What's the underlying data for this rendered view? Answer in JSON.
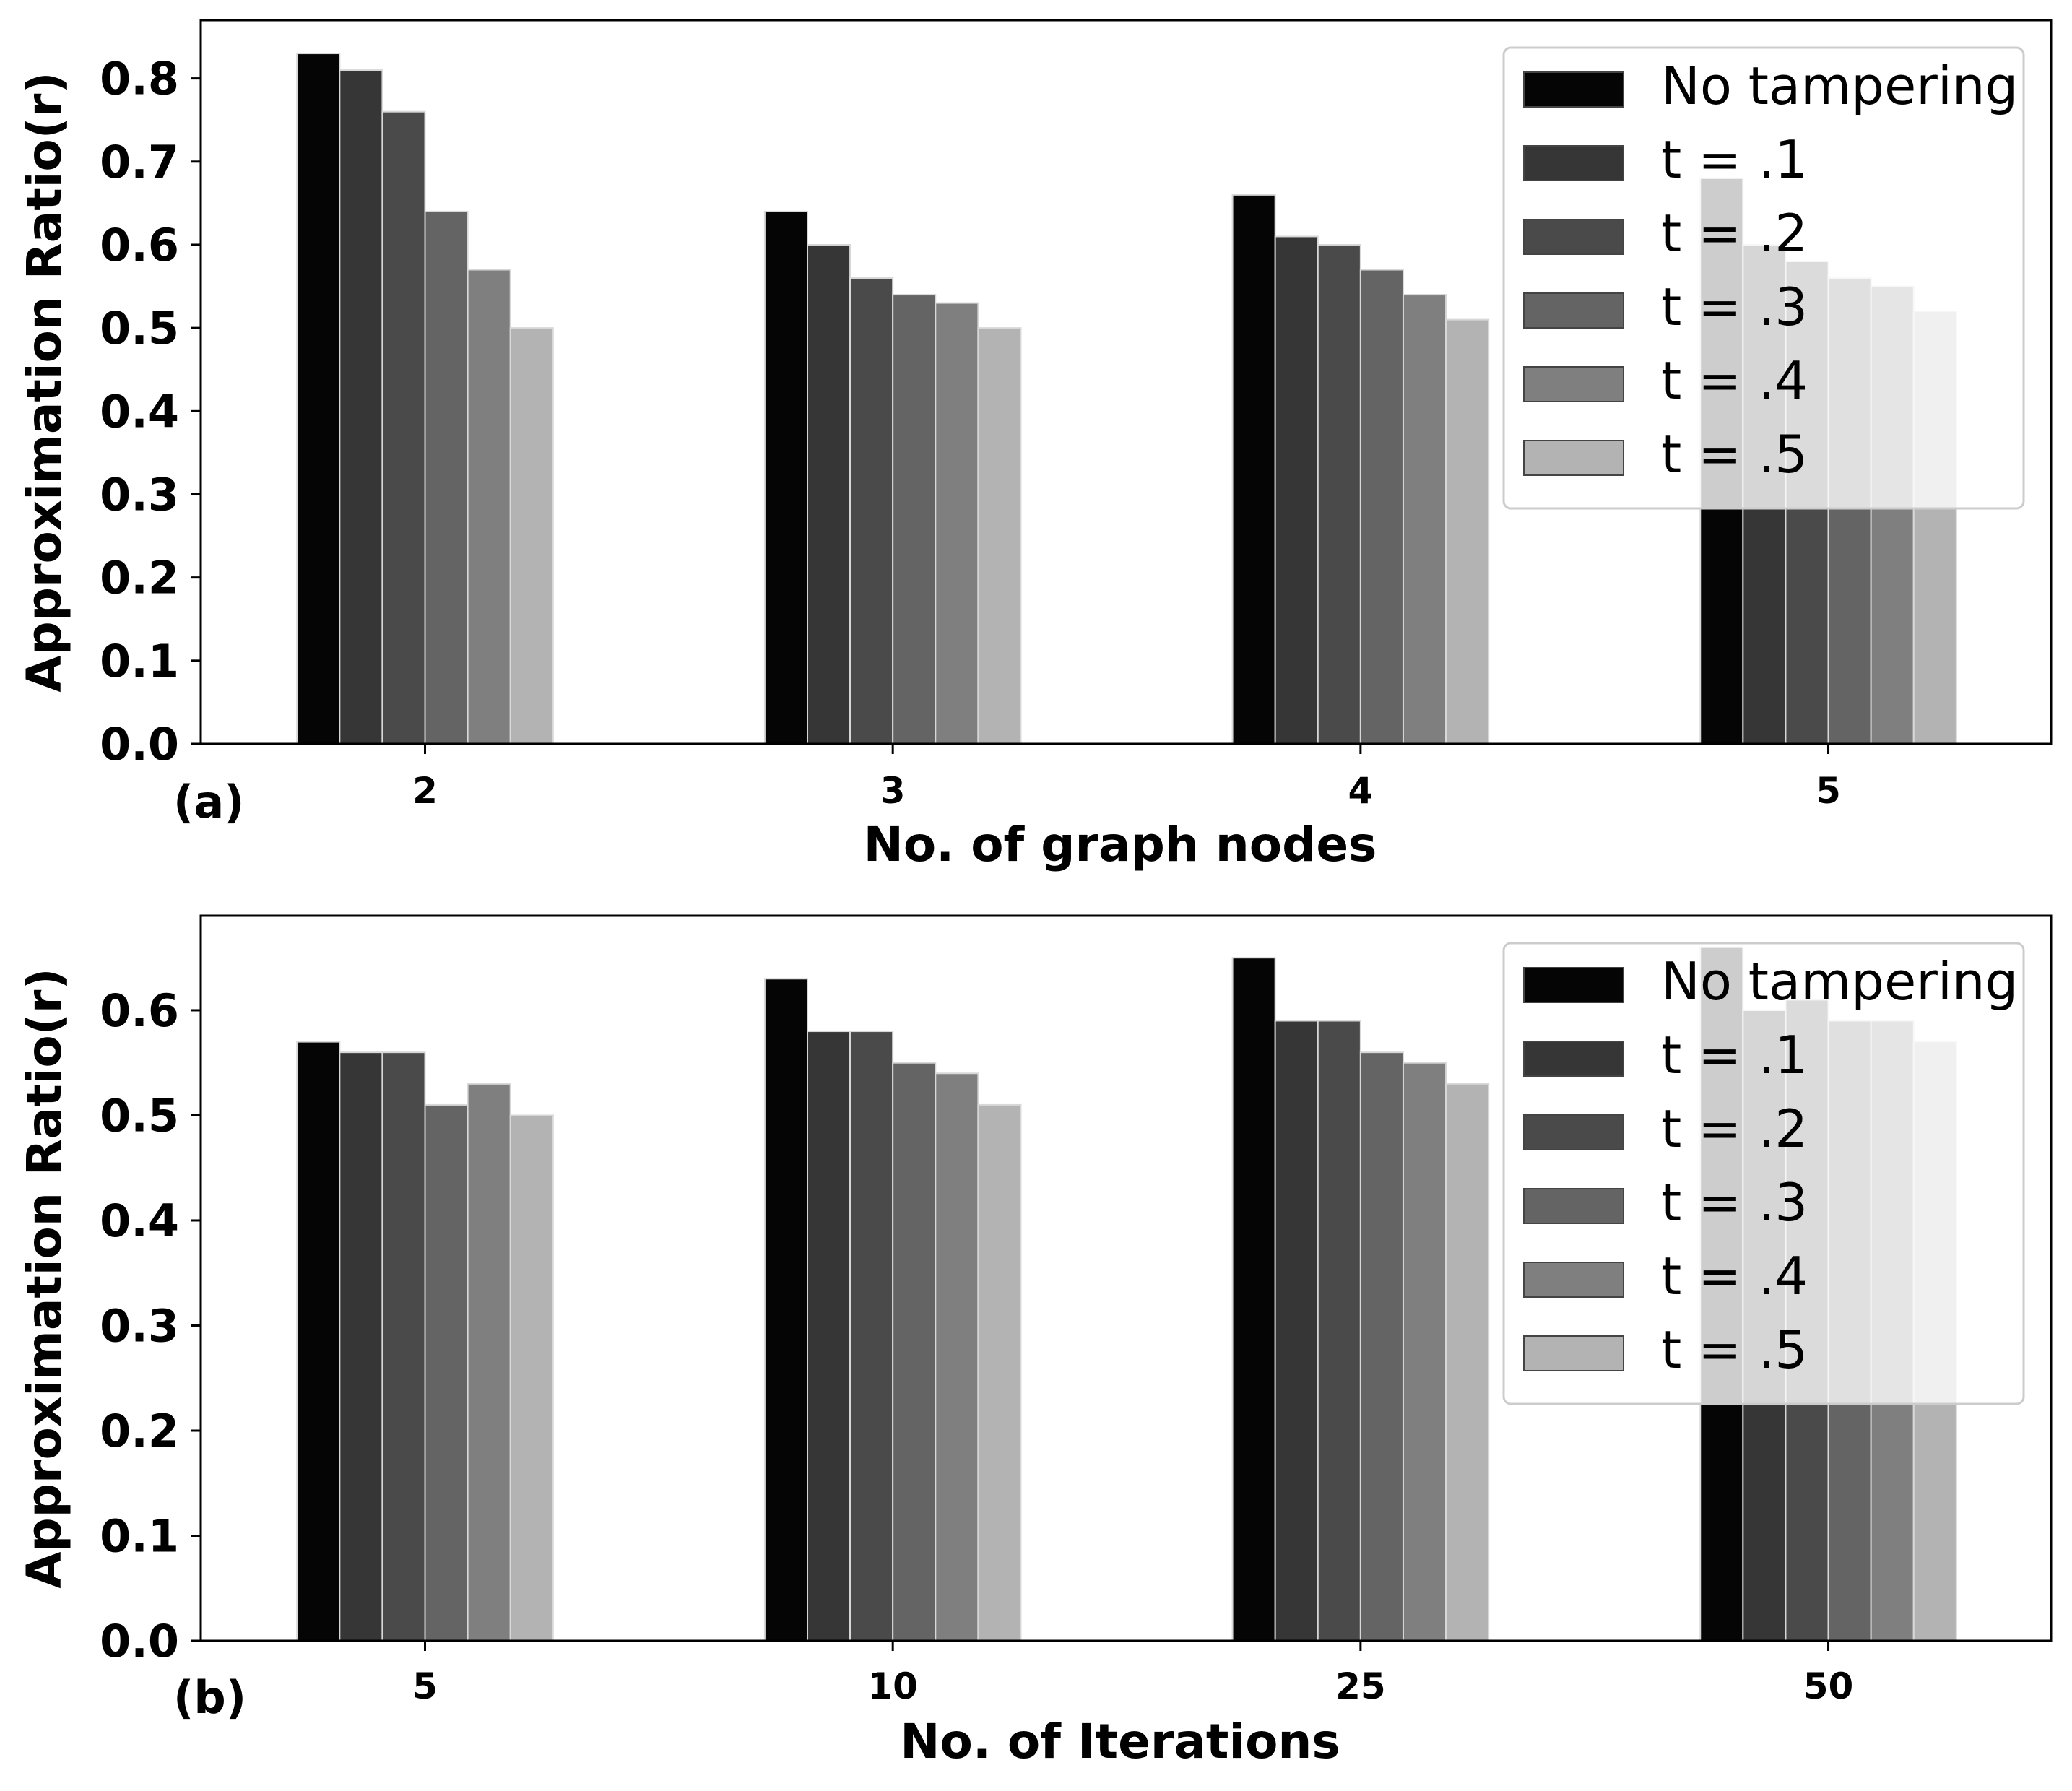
{
  "chart_data": [
    {
      "type": "bar",
      "panel_label": "(a)",
      "xlabel": "No. of graph nodes",
      "ylabel": "Approximation Ratio(r)",
      "categories": [
        "2",
        "3",
        "4",
        "5"
      ],
      "ylim": [
        0,
        0.87
      ],
      "yticks": [
        "0.0",
        "0.1",
        "0.2",
        "0.3",
        "0.4",
        "0.5",
        "0.6",
        "0.7",
        "0.8"
      ],
      "legend_position": "top-right",
      "grid": false,
      "series": [
        {
          "name": "No tampering",
          "color": "#050505",
          "values": [
            0.83,
            0.64,
            0.66,
            0.68
          ]
        },
        {
          "name": "t = .1",
          "color": "#363636",
          "values": [
            0.81,
            0.6,
            0.61,
            0.6
          ]
        },
        {
          "name": "t = .2",
          "color": "#4a4a4a",
          "values": [
            0.76,
            0.56,
            0.6,
            0.58
          ]
        },
        {
          "name": "t = .3",
          "color": "#646464",
          "values": [
            0.64,
            0.54,
            0.57,
            0.56
          ]
        },
        {
          "name": "t = .4",
          "color": "#7f7f7f",
          "values": [
            0.57,
            0.53,
            0.54,
            0.55
          ]
        },
        {
          "name": "t = .5",
          "color": "#b3b3b3",
          "values": [
            0.5,
            0.5,
            0.51,
            0.52
          ]
        }
      ]
    },
    {
      "type": "bar",
      "panel_label": "(b)",
      "xlabel": "No. of Iterations",
      "ylabel": "Approximation Ratio(r)",
      "categories": [
        "5",
        "10",
        "25",
        "50"
      ],
      "ylim": [
        0,
        0.69
      ],
      "yticks": [
        "0.0",
        "0.1",
        "0.2",
        "0.3",
        "0.4",
        "0.5",
        "0.6"
      ],
      "legend_position": "top-right",
      "grid": false,
      "series": [
        {
          "name": "No tampering",
          "color": "#050505",
          "values": [
            0.57,
            0.63,
            0.65,
            0.66
          ]
        },
        {
          "name": "t = .1",
          "color": "#363636",
          "values": [
            0.56,
            0.58,
            0.59,
            0.6
          ]
        },
        {
          "name": "t = .2",
          "color": "#4a4a4a",
          "values": [
            0.56,
            0.58,
            0.59,
            0.61
          ]
        },
        {
          "name": "t = .3",
          "color": "#646464",
          "values": [
            0.51,
            0.55,
            0.56,
            0.59
          ]
        },
        {
          "name": "t = .4",
          "color": "#7f7f7f",
          "values": [
            0.53,
            0.54,
            0.55,
            0.59
          ]
        },
        {
          "name": "t = .5",
          "color": "#b3b3b3",
          "values": [
            0.5,
            0.51,
            0.53,
            0.57
          ]
        }
      ]
    }
  ]
}
